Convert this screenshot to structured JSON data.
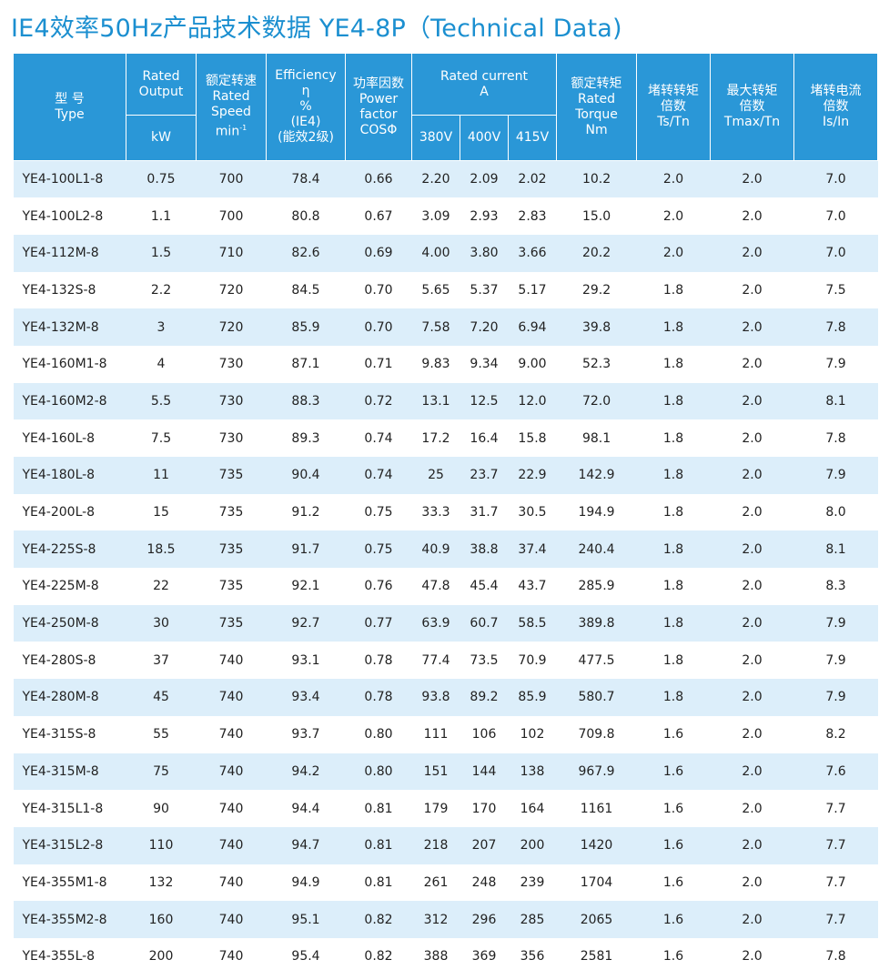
{
  "title": "IE4效率50Hz产品技术数据 YE4-8P（Technical Data)",
  "header": {
    "type_cn": "型 号",
    "type_en": "Type",
    "output_en1": "Rated",
    "output_en2": "Output",
    "output_unit": "kW",
    "speed_cn": "额定转速",
    "speed_en1": "Rated",
    "speed_en2": "Speed",
    "speed_unit": "min",
    "speed_sup": "-1",
    "eff_en": "Efficiency",
    "eff_sym": "η",
    "eff_pct": "%",
    "eff_ie4": "(IE4)",
    "eff_cn": "(能效2级)",
    "pf_cn": "功率因数",
    "pf_en1": "Power",
    "pf_en2": "factor",
    "pf_sym": "COSΦ",
    "current_en": "Rated  current",
    "current_unit": "A",
    "v380": "380V",
    "v400": "400V",
    "v415": "415V",
    "torque_cn": "额定转矩",
    "torque_en1": "Rated",
    "torque_en2": "Torque",
    "torque_unit": "Nm",
    "lrt_cn1": "堵转转矩",
    "lrt_cn2": "倍数",
    "lrt_ratio": "Ts/Tn",
    "maxt_cn1": "最大转矩",
    "maxt_cn2": "倍数",
    "maxt_ratio": "Tmax/Tn",
    "lrc_cn1": "堵转电流",
    "lrc_cn2": "倍数",
    "lrc_ratio": "Is/In"
  },
  "rows": [
    [
      "YE4-100L1-8",
      "0.75",
      "700",
      "78.4",
      "0.66",
      "2.20",
      "2.09",
      "2.02",
      "10.2",
      "2.0",
      "2.0",
      "7.0"
    ],
    [
      "YE4-100L2-8",
      "1.1",
      "700",
      "80.8",
      "0.67",
      "3.09",
      "2.93",
      "2.83",
      "15.0",
      "2.0",
      "2.0",
      "7.0"
    ],
    [
      "YE4-112M-8",
      "1.5",
      "710",
      "82.6",
      "0.69",
      "4.00",
      "3.80",
      "3.66",
      "20.2",
      "2.0",
      "2.0",
      "7.0"
    ],
    [
      "YE4-132S-8",
      "2.2",
      "720",
      "84.5",
      "0.70",
      "5.65",
      "5.37",
      "5.17",
      "29.2",
      "1.8",
      "2.0",
      "7.5"
    ],
    [
      "YE4-132M-8",
      "3",
      "720",
      "85.9",
      "0.70",
      "7.58",
      "7.20",
      "6.94",
      "39.8",
      "1.8",
      "2.0",
      "7.8"
    ],
    [
      "YE4-160M1-8",
      "4",
      "730",
      "87.1",
      "0.71",
      "9.83",
      "9.34",
      "9.00",
      "52.3",
      "1.8",
      "2.0",
      "7.9"
    ],
    [
      "YE4-160M2-8",
      "5.5",
      "730",
      "88.3",
      "0.72",
      "13.1",
      "12.5",
      "12.0",
      "72.0",
      "1.8",
      "2.0",
      "8.1"
    ],
    [
      "YE4-160L-8",
      "7.5",
      "730",
      "89.3",
      "0.74",
      "17.2",
      "16.4",
      "15.8",
      "98.1",
      "1.8",
      "2.0",
      "7.8"
    ],
    [
      "YE4-180L-8",
      "11",
      "735",
      "90.4",
      "0.74",
      "25",
      "23.7",
      "22.9",
      "142.9",
      "1.8",
      "2.0",
      "7.9"
    ],
    [
      "YE4-200L-8",
      "15",
      "735",
      "91.2",
      "0.75",
      "33.3",
      "31.7",
      "30.5",
      "194.9",
      "1.8",
      "2.0",
      "8.0"
    ],
    [
      "YE4-225S-8",
      "18.5",
      "735",
      "91.7",
      "0.75",
      "40.9",
      "38.8",
      "37.4",
      "240.4",
      "1.8",
      "2.0",
      "8.1"
    ],
    [
      "YE4-225M-8",
      "22",
      "735",
      "92.1",
      "0.76",
      "47.8",
      "45.4",
      "43.7",
      "285.9",
      "1.8",
      "2.0",
      "8.3"
    ],
    [
      "YE4-250M-8",
      "30",
      "735",
      "92.7",
      "0.77",
      "63.9",
      "60.7",
      "58.5",
      "389.8",
      "1.8",
      "2.0",
      "7.9"
    ],
    [
      "YE4-280S-8",
      "37",
      "740",
      "93.1",
      "0.78",
      "77.4",
      "73.5",
      "70.9",
      "477.5",
      "1.8",
      "2.0",
      "7.9"
    ],
    [
      "YE4-280M-8",
      "45",
      "740",
      "93.4",
      "0.78",
      "93.8",
      "89.2",
      "85.9",
      "580.7",
      "1.8",
      "2.0",
      "7.9"
    ],
    [
      "YE4-315S-8",
      "55",
      "740",
      "93.7",
      "0.80",
      "111",
      "106",
      "102",
      "709.8",
      "1.6",
      "2.0",
      "8.2"
    ],
    [
      "YE4-315M-8",
      "75",
      "740",
      "94.2",
      "0.80",
      "151",
      "144",
      "138",
      "967.9",
      "1.6",
      "2.0",
      "7.6"
    ],
    [
      "YE4-315L1-8",
      "90",
      "740",
      "94.4",
      "0.81",
      "179",
      "170",
      "164",
      "1161",
      "1.6",
      "2.0",
      "7.7"
    ],
    [
      "YE4-315L2-8",
      "110",
      "740",
      "94.7",
      "0.81",
      "218",
      "207",
      "200",
      "1420",
      "1.6",
      "2.0",
      "7.7"
    ],
    [
      "YE4-355M1-8",
      "132",
      "740",
      "94.9",
      "0.81",
      "261",
      "248",
      "239",
      "1704",
      "1.6",
      "2.0",
      "7.7"
    ],
    [
      "YE4-355M2-8",
      "160",
      "740",
      "95.1",
      "0.82",
      "312",
      "296",
      "285",
      "2065",
      "1.6",
      "2.0",
      "7.7"
    ],
    [
      "YE4-355L-8",
      "200",
      "740",
      "95.4",
      "0.82",
      "388",
      "369",
      "356",
      "2581",
      "1.6",
      "2.0",
      "7.8"
    ]
  ],
  "colors": {
    "title": "#1b8fd0",
    "header_bg": "#2a97d7",
    "row_stripe": "#dceefa"
  }
}
